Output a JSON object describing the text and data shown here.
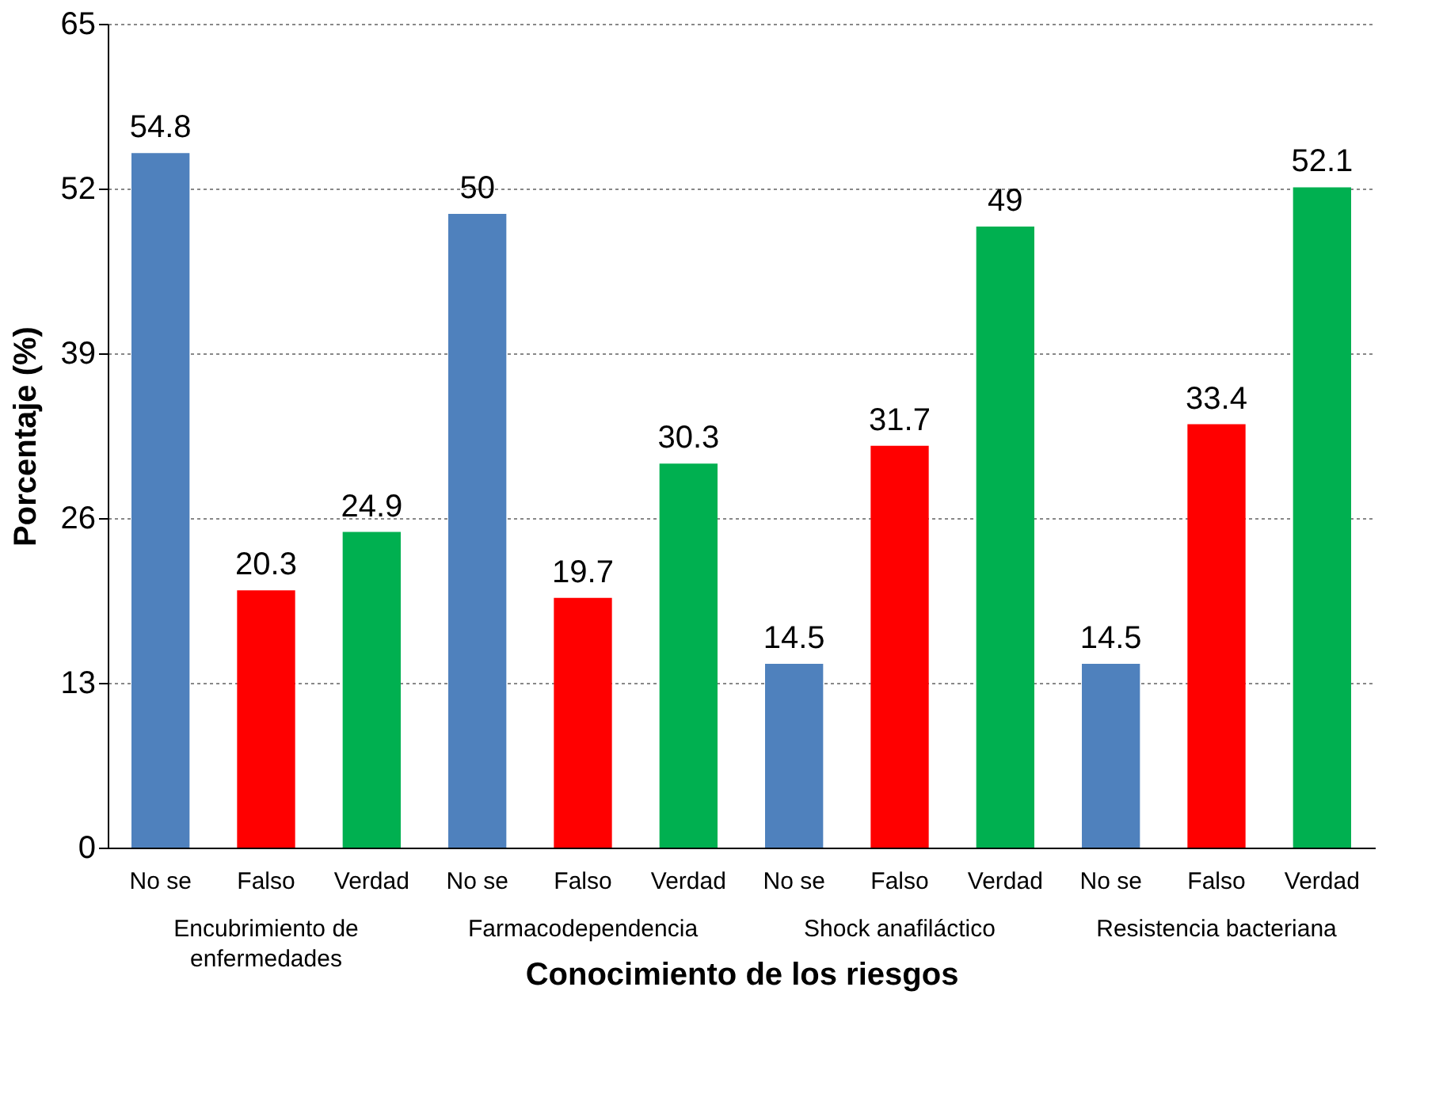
{
  "chart_data": {
    "type": "bar",
    "xlabel": "Conocimiento de los riesgos",
    "ylabel": "Porcentaje (%)",
    "categories": [
      "Encubrimiento de enfermedades",
      "Farmacodependencia",
      "Shock anafiláctico",
      "Resistencia bacteriana"
    ],
    "series": [
      {
        "name": "No se",
        "color": "#4f81bd",
        "values": [
          54.8,
          50,
          14.5,
          14.5
        ]
      },
      {
        "name": "Falso",
        "color": "#ff0000",
        "values": [
          20.3,
          19.7,
          31.7,
          33.4
        ]
      },
      {
        "name": "Verdad",
        "color": "#00b050",
        "values": [
          24.9,
          30.3,
          49,
          52.1
        ]
      }
    ],
    "ylim": [
      0,
      65
    ],
    "yticks": [
      0,
      13,
      26,
      39,
      52,
      65
    ],
    "grid": "y",
    "data_labels": true,
    "legend": false
  }
}
